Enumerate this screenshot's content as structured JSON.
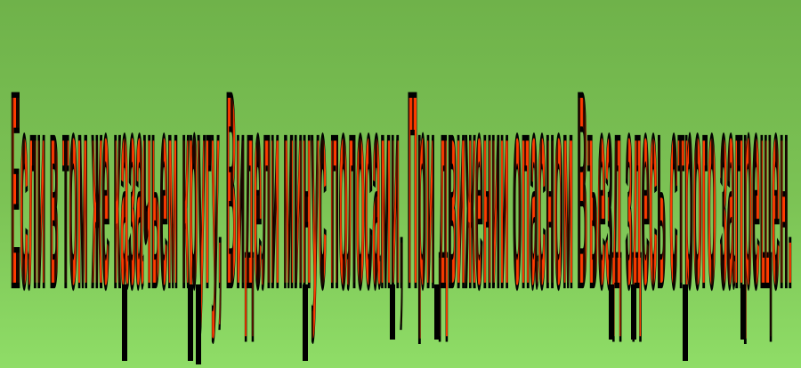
{
  "slogan": {
    "text": "Если в том же казачьем кругу, Видели минус полосами, При движении опасном Въезд здесь строго запрещен.",
    "colors": {
      "fill": "#ff3b00",
      "stroke": "#000000",
      "background_top": "#6fb24a",
      "background_bottom": "#8fdd67"
    }
  }
}
